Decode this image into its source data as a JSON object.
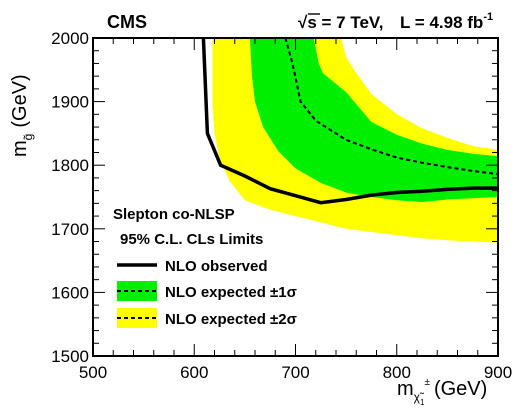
{
  "chart_data": {
    "type": "line",
    "header": {
      "experiment": "CMS",
      "energy": "√s = 7 TeV,",
      "lumi_base": "L = 4.98 fb",
      "lumi_exp": "-1"
    },
    "annotations": [
      "Slepton co-NLSP",
      "95% C.L. CLs Limits"
    ],
    "xlabel": {
      "base": "m",
      "sub": "χ̃",
      "subsub": "1",
      "sup": "±",
      "unit": "(GeV)"
    },
    "ylabel": {
      "base": "m",
      "sub": "g̃",
      "unit": "(GeV)"
    },
    "xlim": [
      500,
      900
    ],
    "ylim": [
      1500,
      2000
    ],
    "xticks": [
      500,
      600,
      700,
      800,
      900
    ],
    "yticks": [
      1500,
      1600,
      1700,
      1800,
      1900,
      2000
    ],
    "xtick_labels": [
      "500",
      "600",
      "700",
      "800",
      "900"
    ],
    "ytick_labels": [
      "1500",
      "1600",
      "1700",
      "1800",
      "1900",
      "2000"
    ],
    "colors": {
      "band2": "#ffff00",
      "band1": "#00ee00",
      "line": "#000000"
    },
    "series": [
      {
        "name": "NLO observed",
        "style": "solid",
        "points": [
          [
            609,
            2000
          ],
          [
            613,
            1850
          ],
          [
            626,
            1800
          ],
          [
            650,
            1783
          ],
          [
            675,
            1763
          ],
          [
            700,
            1752
          ],
          [
            725,
            1741
          ],
          [
            750,
            1746
          ],
          [
            775,
            1753
          ],
          [
            800,
            1757
          ],
          [
            825,
            1759
          ],
          [
            850,
            1762
          ],
          [
            875,
            1764
          ],
          [
            900,
            1764
          ]
        ]
      },
      {
        "name": "NLO expected ±1σ",
        "style": "dashed",
        "points": [
          [
            690,
            2000
          ],
          [
            697,
            1960
          ],
          [
            705,
            1900
          ],
          [
            720,
            1870
          ],
          [
            735,
            1855
          ],
          [
            750,
            1840
          ],
          [
            775,
            1825
          ],
          [
            800,
            1812
          ],
          [
            825,
            1804
          ],
          [
            850,
            1797
          ],
          [
            875,
            1791
          ],
          [
            900,
            1786
          ]
        ]
      },
      {
        "name": "NLO expected ±2σ",
        "style": "dashed",
        "points": []
      }
    ],
    "bands": {
      "sigma1": {
        "upper": [
          [
            718,
            2000
          ],
          [
            723,
            1960
          ],
          [
            727,
            1945
          ],
          [
            750,
            1915
          ],
          [
            775,
            1868
          ],
          [
            800,
            1848
          ],
          [
            825,
            1834
          ],
          [
            850,
            1824
          ],
          [
            875,
            1818
          ],
          [
            900,
            1814
          ]
        ],
        "lower": [
          [
            900,
            1750
          ],
          [
            875,
            1748
          ],
          [
            850,
            1746
          ],
          [
            825,
            1742
          ],
          [
            800,
            1745
          ],
          [
            775,
            1750
          ],
          [
            750,
            1757
          ],
          [
            725,
            1772
          ],
          [
            700,
            1795
          ],
          [
            683,
            1822
          ],
          [
            668,
            1860
          ],
          [
            660,
            1900
          ],
          [
            657,
            1940
          ],
          [
            655,
            2000
          ]
        ]
      },
      "sigma2": {
        "upper": [
          [
            745,
            2000
          ],
          [
            750,
            1970
          ],
          [
            760,
            1945
          ],
          [
            775,
            1912
          ],
          [
            800,
            1880
          ],
          [
            825,
            1858
          ],
          [
            850,
            1843
          ],
          [
            875,
            1830
          ],
          [
            900,
            1824
          ]
        ],
        "lower": [
          [
            900,
            1678
          ],
          [
            875,
            1680
          ],
          [
            850,
            1682
          ],
          [
            825,
            1685
          ],
          [
            800,
            1690
          ],
          [
            775,
            1695
          ],
          [
            750,
            1700
          ],
          [
            725,
            1710
          ],
          [
            700,
            1720
          ],
          [
            675,
            1730
          ],
          [
            650,
            1745
          ],
          [
            635,
            1775
          ],
          [
            625,
            1810
          ],
          [
            620,
            1850
          ],
          [
            618,
            1900
          ],
          [
            618,
            2000
          ]
        ]
      }
    },
    "legend": {
      "entries": [
        "NLO observed",
        "NLO expected ±1σ",
        "NLO expected ±2σ"
      ]
    }
  }
}
